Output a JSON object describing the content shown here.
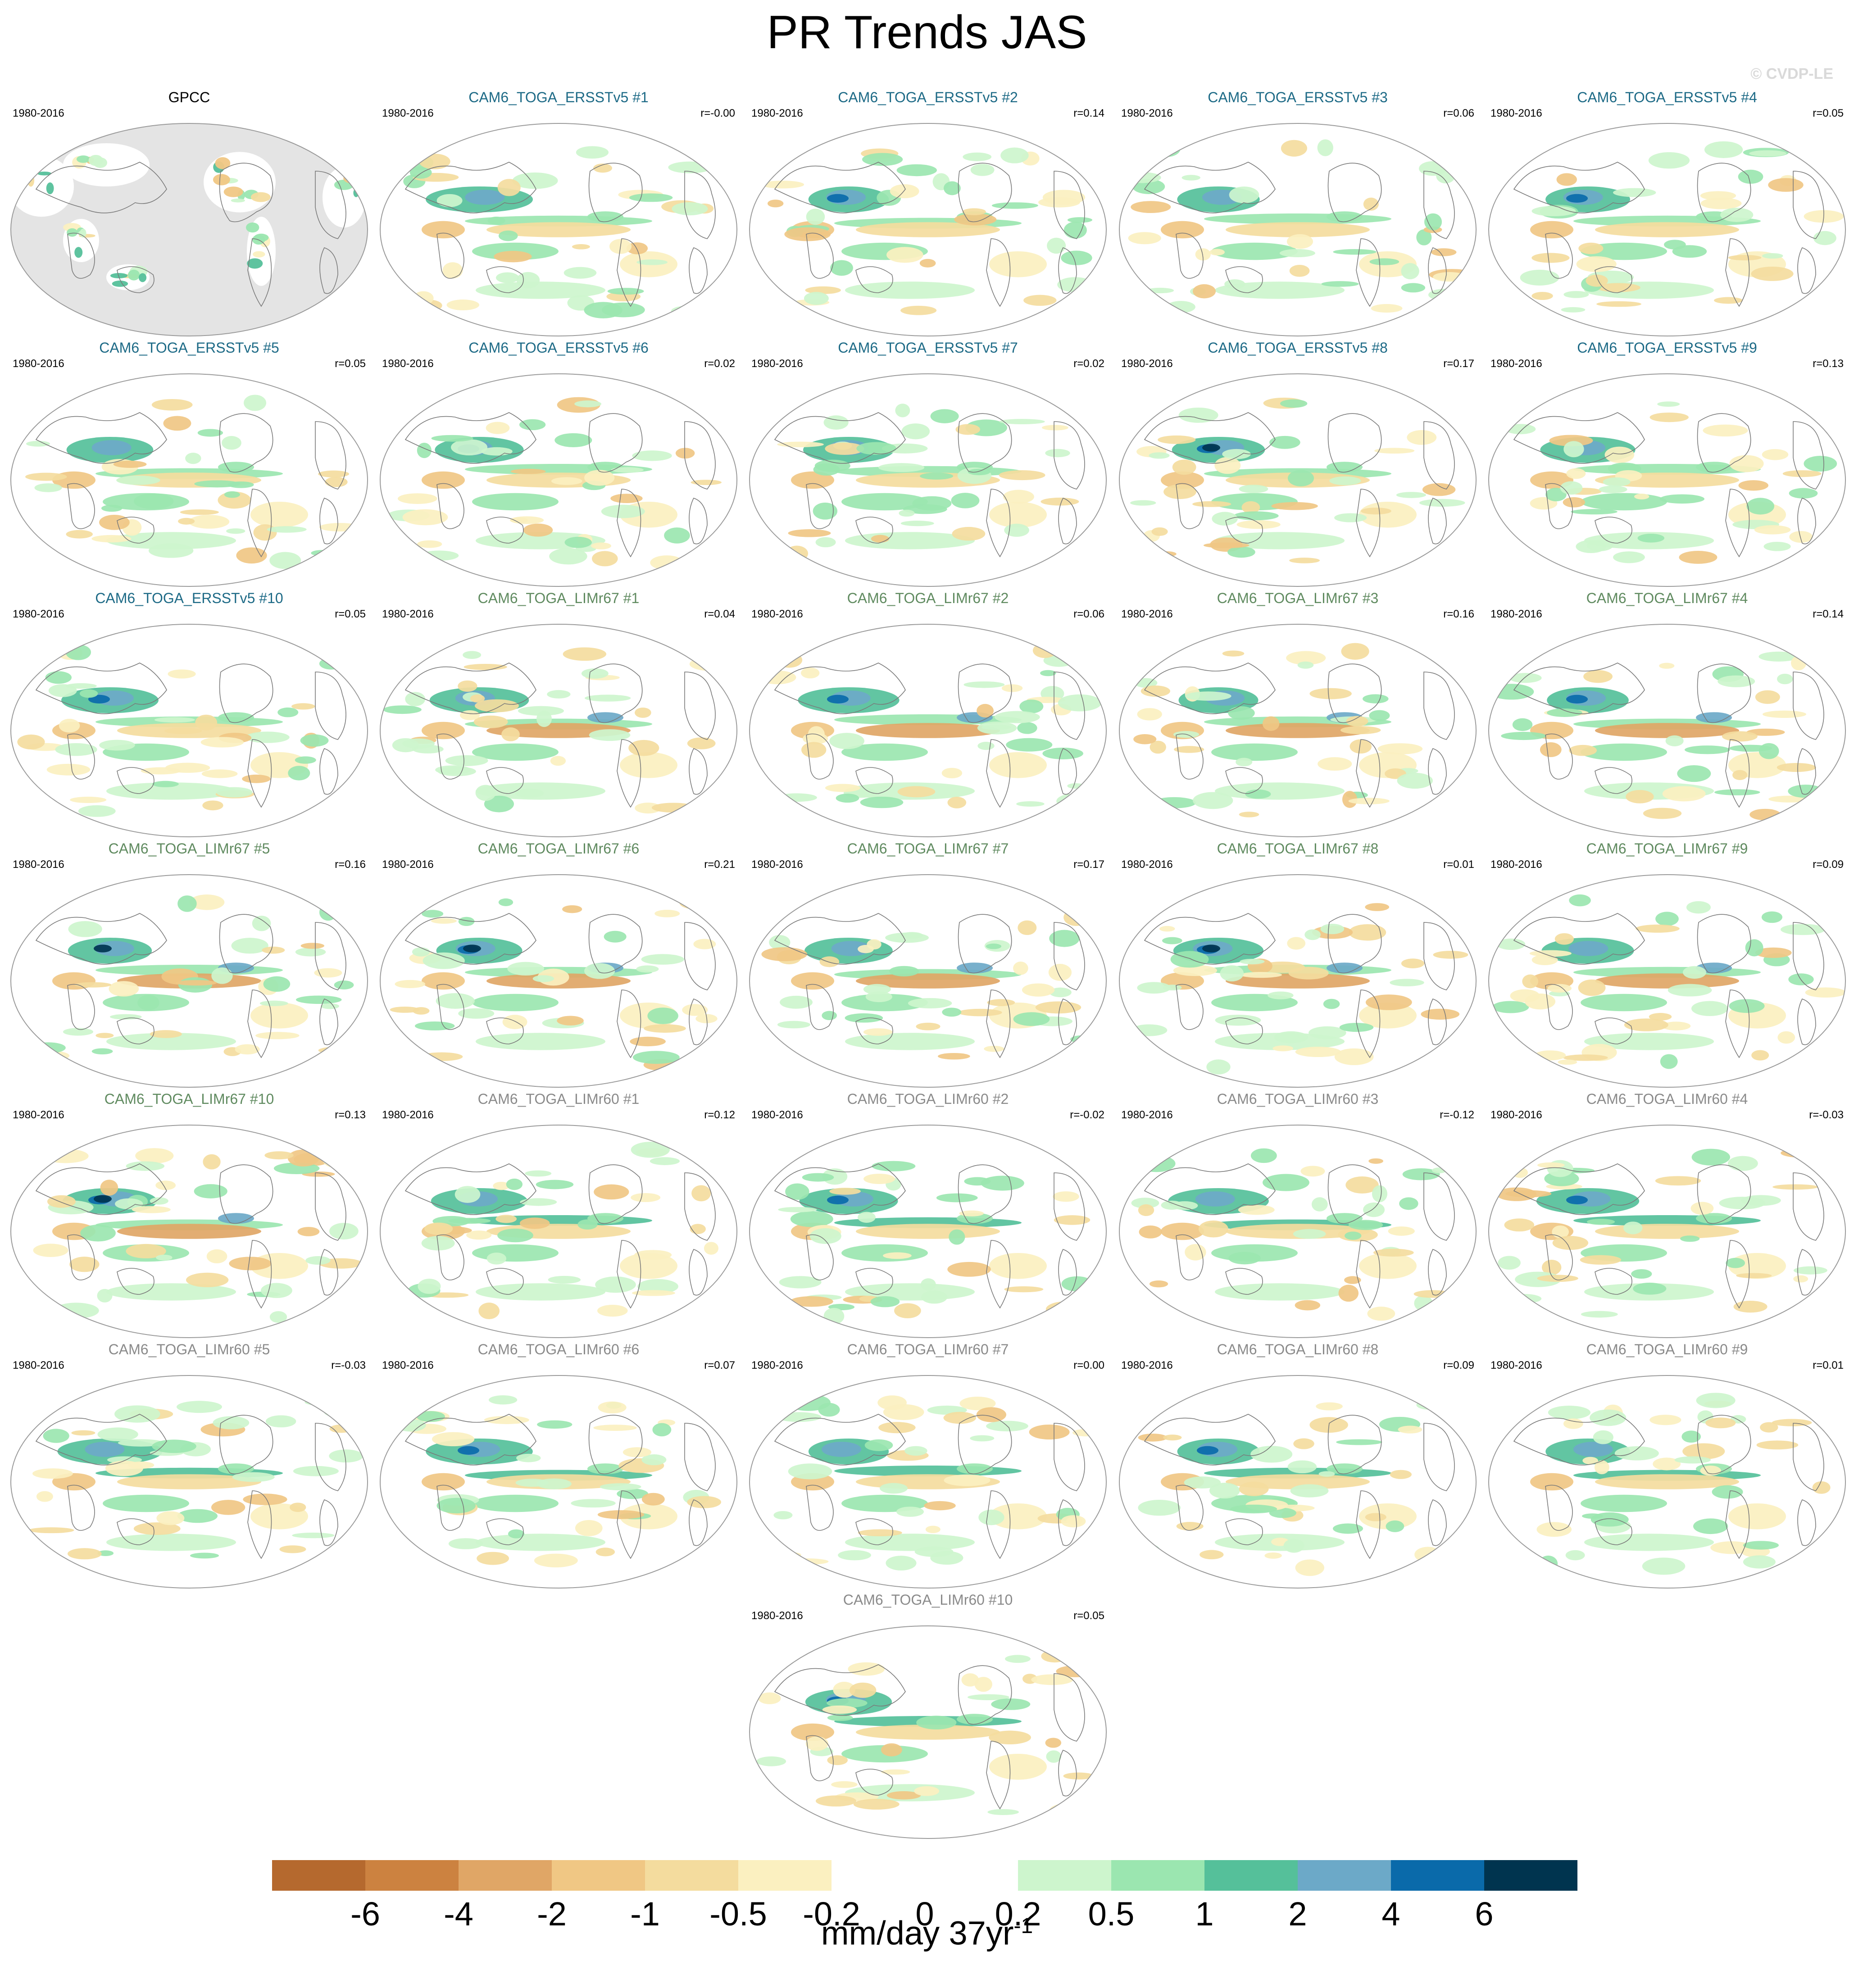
{
  "figure": {
    "title": "PR Trends JAS",
    "watermark": "© CVDP-LE",
    "units_base": "mm/day 37yr",
    "units_exponent": "-1"
  },
  "colors": {
    "ersst": "#1d6a86",
    "lim67": "#5f8a5f",
    "lim60": "#8a8a8a",
    "obs": "#000000",
    "land_mask": "#e4e4e4"
  },
  "chart_data": {
    "type": "heatmap",
    "projection": "robinson",
    "variable": "PR",
    "season": "JAS",
    "period": "1980-2016",
    "colorbar": {
      "ticks": [
        "-6",
        "-4",
        "-2",
        "-1",
        "-0.5",
        "-0.2",
        "0",
        "0.2",
        "0.5",
        "1",
        "2",
        "4",
        "6"
      ],
      "colors": [
        "#b5692e",
        "#cc8240",
        "#e0a666",
        "#f0c784",
        "#f4dc9e",
        "#fbf0c0",
        "#ffffff",
        "#ffffff",
        "#cdf5cd",
        "#9be6b0",
        "#55c09a",
        "#6ca9c8",
        "#0a6aaa",
        "#00344f"
      ]
    },
    "panels": [
      {
        "name": "GPCC",
        "group": "obs",
        "period": "1980-2016",
        "r": "",
        "pattern": 0
      },
      {
        "name": "CAM6_TOGA_ERSSTv5 #1",
        "group": "ersst",
        "period": "1980-2016",
        "r": "r=-0.00",
        "pattern": 1
      },
      {
        "name": "CAM6_TOGA_ERSSTv5 #2",
        "group": "ersst",
        "period": "1980-2016",
        "r": "r=0.14",
        "pattern": 2
      },
      {
        "name": "CAM6_TOGA_ERSSTv5 #3",
        "group": "ersst",
        "period": "1980-2016",
        "r": "r=0.06",
        "pattern": 3
      },
      {
        "name": "CAM6_TOGA_ERSSTv5 #4",
        "group": "ersst",
        "period": "1980-2016",
        "r": "r=0.05",
        "pattern": 4
      },
      {
        "name": "CAM6_TOGA_ERSSTv5 #5",
        "group": "ersst",
        "period": "1980-2016",
        "r": "r=0.05",
        "pattern": 5
      },
      {
        "name": "CAM6_TOGA_ERSSTv5 #6",
        "group": "ersst",
        "period": "1980-2016",
        "r": "r=0.02",
        "pattern": 6
      },
      {
        "name": "CAM6_TOGA_ERSSTv5 #7",
        "group": "ersst",
        "period": "1980-2016",
        "r": "r=0.02",
        "pattern": 7
      },
      {
        "name": "CAM6_TOGA_ERSSTv5 #8",
        "group": "ersst",
        "period": "1980-2016",
        "r": "r=0.17",
        "pattern": 8
      },
      {
        "name": "CAM6_TOGA_ERSSTv5 #9",
        "group": "ersst",
        "period": "1980-2016",
        "r": "r=0.13",
        "pattern": 9
      },
      {
        "name": "CAM6_TOGA_ERSSTv5 #10",
        "group": "ersst",
        "period": "1980-2016",
        "r": "r=0.05",
        "pattern": 10
      },
      {
        "name": "CAM6_TOGA_LIMr67 #1",
        "group": "lim67",
        "period": "1980-2016",
        "r": "r=0.04",
        "pattern": 11
      },
      {
        "name": "CAM6_TOGA_LIMr67 #2",
        "group": "lim67",
        "period": "1980-2016",
        "r": "r=0.06",
        "pattern": 12
      },
      {
        "name": "CAM6_TOGA_LIMr67 #3",
        "group": "lim67",
        "period": "1980-2016",
        "r": "r=0.16",
        "pattern": 13
      },
      {
        "name": "CAM6_TOGA_LIMr67 #4",
        "group": "lim67",
        "period": "1980-2016",
        "r": "r=0.14",
        "pattern": 14
      },
      {
        "name": "CAM6_TOGA_LIMr67 #5",
        "group": "lim67",
        "period": "1980-2016",
        "r": "r=0.16",
        "pattern": 15
      },
      {
        "name": "CAM6_TOGA_LIMr67 #6",
        "group": "lim67",
        "period": "1980-2016",
        "r": "r=0.21",
        "pattern": 16
      },
      {
        "name": "CAM6_TOGA_LIMr67 #7",
        "group": "lim67",
        "period": "1980-2016",
        "r": "r=0.17",
        "pattern": 17
      },
      {
        "name": "CAM6_TOGA_LIMr67 #8",
        "group": "lim67",
        "period": "1980-2016",
        "r": "r=0.01",
        "pattern": 18
      },
      {
        "name": "CAM6_TOGA_LIMr67 #9",
        "group": "lim67",
        "period": "1980-2016",
        "r": "r=0.09",
        "pattern": 19
      },
      {
        "name": "CAM6_TOGA_LIMr67 #10",
        "group": "lim67",
        "period": "1980-2016",
        "r": "r=0.13",
        "pattern": 20
      },
      {
        "name": "CAM6_TOGA_LIMr60 #1",
        "group": "lim60",
        "period": "1980-2016",
        "r": "r=0.12",
        "pattern": 21
      },
      {
        "name": "CAM6_TOGA_LIMr60 #2",
        "group": "lim60",
        "period": "1980-2016",
        "r": "r=-0.02",
        "pattern": 22
      },
      {
        "name": "CAM6_TOGA_LIMr60 #3",
        "group": "lim60",
        "period": "1980-2016",
        "r": "r=-0.12",
        "pattern": 23
      },
      {
        "name": "CAM6_TOGA_LIMr60 #4",
        "group": "lim60",
        "period": "1980-2016",
        "r": "r=-0.03",
        "pattern": 24
      },
      {
        "name": "CAM6_TOGA_LIMr60 #5",
        "group": "lim60",
        "period": "1980-2016",
        "r": "r=-0.03",
        "pattern": 25
      },
      {
        "name": "CAM6_TOGA_LIMr60 #6",
        "group": "lim60",
        "period": "1980-2016",
        "r": "r=0.07",
        "pattern": 26
      },
      {
        "name": "CAM6_TOGA_LIMr60 #7",
        "group": "lim60",
        "period": "1980-2016",
        "r": "r=0.00",
        "pattern": 27
      },
      {
        "name": "CAM6_TOGA_LIMr60 #8",
        "group": "lim60",
        "period": "1980-2016",
        "r": "r=0.09",
        "pattern": 28
      },
      {
        "name": "CAM6_TOGA_LIMr60 #9",
        "group": "lim60",
        "period": "1980-2016",
        "r": "r=0.01",
        "pattern": 29
      },
      {
        "name": "CAM6_TOGA_LIMr60 #10",
        "group": "lim60",
        "period": "1980-2016",
        "r": "r=0.05",
        "pattern": 30
      }
    ]
  }
}
